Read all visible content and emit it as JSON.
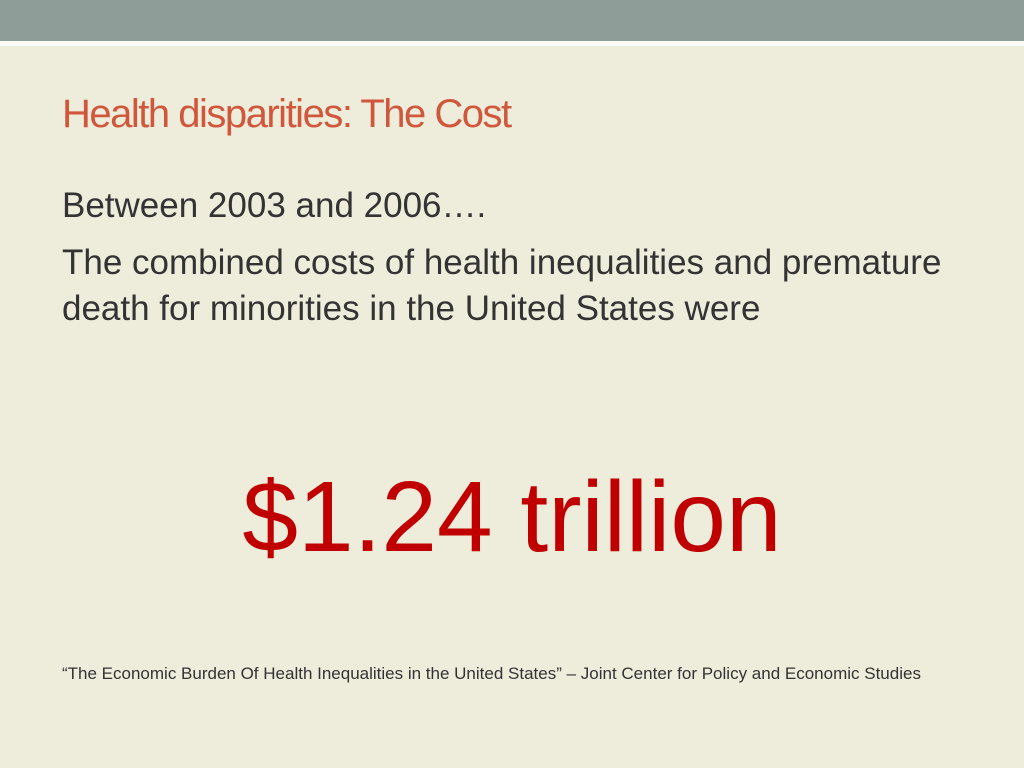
{
  "slide": {
    "title": "Health disparities: The Cost",
    "body": [
      "Between 2003 and 2006….",
      "The combined costs of health inequalities and premature death for minorities in the United States were"
    ],
    "highlight": "$1.24 trillion",
    "citation": "“The Economic Burden Of Health Inequalities in the United States” – Joint Center for Policy and Economic Studies"
  }
}
